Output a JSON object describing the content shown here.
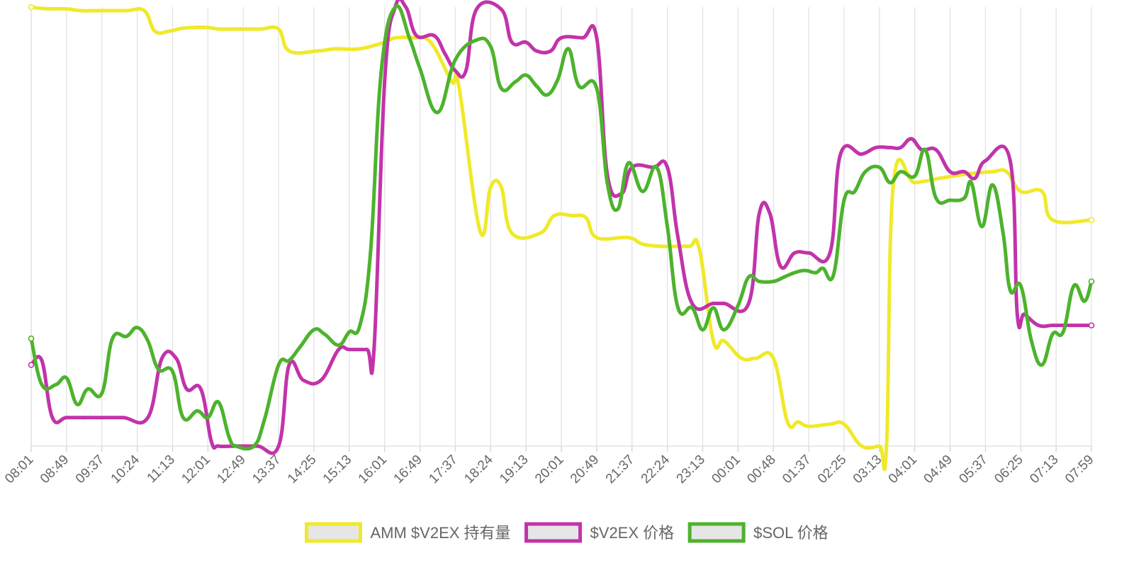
{
  "chart_data": {
    "type": "line",
    "x_ticks": [
      "08:01",
      "08:49",
      "09:37",
      "10:24",
      "11:13",
      "12:01",
      "12:49",
      "13:37",
      "14:25",
      "15:13",
      "16:01",
      "16:49",
      "17:37",
      "18:24",
      "19:13",
      "20:01",
      "20:49",
      "21:37",
      "22:24",
      "23:13",
      "00:01",
      "00:48",
      "01:37",
      "02:25",
      "03:13",
      "04:01",
      "04:49",
      "05:37",
      "06:25",
      "07:13",
      "07:59"
    ],
    "y_range": [
      0,
      100
    ],
    "y_axis_shown": false,
    "grid": "vertical",
    "legend_position": "bottom",
    "series": [
      {
        "name": "AMM $V2EX 持有量",
        "color": "#f0e92a",
        "points": [
          [
            0,
            100
          ],
          [
            0.3,
            99.7
          ],
          [
            0.6,
            99.6
          ],
          [
            1,
            99.6
          ],
          [
            1.4,
            99.2
          ],
          [
            2,
            99.2
          ],
          [
            2.7,
            99.2
          ],
          [
            3.2,
            99.2
          ],
          [
            3.5,
            94.5
          ],
          [
            3.9,
            94.5
          ],
          [
            4.3,
            95.2
          ],
          [
            4.9,
            95.4
          ],
          [
            5.3,
            95.0
          ],
          [
            5.7,
            95.0
          ],
          [
            6.1,
            95.0
          ],
          [
            6.5,
            95.0
          ],
          [
            7.0,
            95.0
          ],
          [
            7.3,
            90.0
          ],
          [
            8.1,
            90.0
          ],
          [
            8.6,
            90.5
          ],
          [
            9.3,
            90.5
          ],
          [
            10.0,
            92.0
          ],
          [
            10.3,
            93.0
          ],
          [
            10.8,
            93.0
          ],
          [
            11.3,
            92.0
          ],
          [
            11.9,
            83.0
          ],
          [
            12.1,
            82.0
          ],
          [
            12.7,
            49.0
          ],
          [
            13.0,
            59.0
          ],
          [
            13.3,
            59.0
          ],
          [
            13.6,
            48.5
          ],
          [
            14.4,
            48.5
          ],
          [
            14.8,
            52.5
          ],
          [
            15.3,
            52.5
          ],
          [
            15.7,
            52.0
          ],
          [
            16.0,
            47.5
          ],
          [
            16.9,
            47.5
          ],
          [
            17.3,
            46.0
          ],
          [
            17.9,
            45.5
          ],
          [
            18.6,
            45.5
          ],
          [
            18.9,
            45.0
          ],
          [
            19.3,
            24.0
          ],
          [
            19.6,
            24.0
          ],
          [
            20.1,
            20.0
          ],
          [
            20.5,
            20.0
          ],
          [
            21.0,
            20.0
          ],
          [
            21.4,
            5.5
          ],
          [
            21.7,
            5.5
          ],
          [
            22.0,
            4.5
          ],
          [
            22.6,
            5.0
          ],
          [
            23.0,
            5.0
          ],
          [
            23.5,
            0
          ],
          [
            24.0,
            0
          ],
          [
            24.2,
            0
          ],
          [
            24.4,
            60.0
          ],
          [
            25.0,
            60.0
          ],
          [
            25.7,
            61.0
          ],
          [
            26.5,
            62.0
          ],
          [
            27.2,
            62.5
          ],
          [
            27.6,
            62.5
          ],
          [
            28.0,
            58.0
          ],
          [
            28.6,
            58.0
          ],
          [
            28.9,
            51.5
          ],
          [
            30.0,
            51.5
          ]
        ]
      },
      {
        "name": "$V2EX 价格",
        "color": "#c233aa",
        "points": [
          [
            0,
            18.5
          ],
          [
            0.3,
            19.5
          ],
          [
            0.6,
            6.5
          ],
          [
            1,
            6.5
          ],
          [
            1.5,
            6.5
          ],
          [
            2,
            6.5
          ],
          [
            2.6,
            6.5
          ],
          [
            3.3,
            6.5
          ],
          [
            3.7,
            20.0
          ],
          [
            4.1,
            20.0
          ],
          [
            4.4,
            13.0
          ],
          [
            4.8,
            13.0
          ],
          [
            5.1,
            1.0
          ],
          [
            5.3,
            0
          ],
          [
            5.8,
            0
          ],
          [
            6.4,
            0
          ],
          [
            7.0,
            0
          ],
          [
            7.3,
            18.5
          ],
          [
            7.7,
            15.0
          ],
          [
            8.2,
            15.0
          ],
          [
            8.7,
            22.0
          ],
          [
            9.0,
            22.0
          ],
          [
            9.5,
            22.0
          ],
          [
            9.7,
            22.0
          ],
          [
            10.0,
            83.0
          ],
          [
            10.3,
            100
          ],
          [
            10.6,
            100
          ],
          [
            10.9,
            93.5
          ],
          [
            11.4,
            93.5
          ],
          [
            11.7,
            89.5
          ],
          [
            12.0,
            85.5
          ],
          [
            12.3,
            85.5
          ],
          [
            12.6,
            99.5
          ],
          [
            13.3,
            99.5
          ],
          [
            13.6,
            92.0
          ],
          [
            14.0,
            92.0
          ],
          [
            14.3,
            90.0
          ],
          [
            14.7,
            90.0
          ],
          [
            15.0,
            93.0
          ],
          [
            15.6,
            93.0
          ],
          [
            16.0,
            93.0
          ],
          [
            16.3,
            62.0
          ],
          [
            16.7,
            57.5
          ],
          [
            17.0,
            63.5
          ],
          [
            17.6,
            63.5
          ],
          [
            18.0,
            63.5
          ],
          [
            18.3,
            47.5
          ],
          [
            18.7,
            32.5
          ],
          [
            19.3,
            32.5
          ],
          [
            19.6,
            32.5
          ],
          [
            20.3,
            32.5
          ],
          [
            20.6,
            53.0
          ],
          [
            20.9,
            53.0
          ],
          [
            21.2,
            41.0
          ],
          [
            21.6,
            44.0
          ],
          [
            22.0,
            44.0
          ],
          [
            22.6,
            44.0
          ],
          [
            22.9,
            66.5
          ],
          [
            23.5,
            66.5
          ],
          [
            23.9,
            68.0
          ],
          [
            24.3,
            68.0
          ],
          [
            24.6,
            68.0
          ],
          [
            24.9,
            70.0
          ],
          [
            25.2,
            67.5
          ],
          [
            25.6,
            67.5
          ],
          [
            26.0,
            62.5
          ],
          [
            26.4,
            62.5
          ],
          [
            26.7,
            61.0
          ],
          [
            27.0,
            65.0
          ],
          [
            27.7,
            65.0
          ],
          [
            27.9,
            30.0
          ],
          [
            28.1,
            30.0
          ],
          [
            28.5,
            27.5
          ],
          [
            28.9,
            27.5
          ],
          [
            29.3,
            27.5
          ],
          [
            30.0,
            27.5
          ]
        ]
      },
      {
        "name": "$SOL 价格",
        "color": "#4db32d",
        "points": [
          [
            0,
            24.5
          ],
          [
            0.3,
            14.0
          ],
          [
            0.7,
            14.0
          ],
          [
            1,
            15.5
          ],
          [
            1.3,
            9.5
          ],
          [
            1.6,
            13.0
          ],
          [
            2,
            12.0
          ],
          [
            2.3,
            24.5
          ],
          [
            2.7,
            25.0
          ],
          [
            3.0,
            27.0
          ],
          [
            3.3,
            24.0
          ],
          [
            3.6,
            17.5
          ],
          [
            4.0,
            17.0
          ],
          [
            4.3,
            6.5
          ],
          [
            4.7,
            8.0
          ],
          [
            5.0,
            6.5
          ],
          [
            5.3,
            10.0
          ],
          [
            5.6,
            2.0
          ],
          [
            5.8,
            0
          ],
          [
            6.3,
            0
          ],
          [
            6.6,
            6.0
          ],
          [
            7.0,
            18.5
          ],
          [
            7.3,
            19.5
          ],
          [
            7.6,
            22.5
          ],
          [
            8.0,
            26.5
          ],
          [
            8.3,
            25.5
          ],
          [
            8.7,
            23.0
          ],
          [
            9.0,
            26.0
          ],
          [
            9.3,
            27.5
          ],
          [
            9.6,
            44.0
          ],
          [
            9.9,
            85.0
          ],
          [
            10.3,
            100
          ],
          [
            10.7,
            93.0
          ],
          [
            11.0,
            86.0
          ],
          [
            11.5,
            76.0
          ],
          [
            12.0,
            88.0
          ],
          [
            12.6,
            92.5
          ],
          [
            13.0,
            91.0
          ],
          [
            13.3,
            81.5
          ],
          [
            13.7,
            83.0
          ],
          [
            14.0,
            84.5
          ],
          [
            14.3,
            82.0
          ],
          [
            14.6,
            80.0
          ],
          [
            14.9,
            83.5
          ],
          [
            15.2,
            90.5
          ],
          [
            15.5,
            82.0
          ],
          [
            16.0,
            81.5
          ],
          [
            16.3,
            60.0
          ],
          [
            16.6,
            54.0
          ],
          [
            16.9,
            64.5
          ],
          [
            17.3,
            58.0
          ],
          [
            17.7,
            63.5
          ],
          [
            18.0,
            50.0
          ],
          [
            18.3,
            31.5
          ],
          [
            18.7,
            31.5
          ],
          [
            19.0,
            26.5
          ],
          [
            19.3,
            31.5
          ],
          [
            19.6,
            26.5
          ],
          [
            20.0,
            32.0
          ],
          [
            20.3,
            38.5
          ],
          [
            20.6,
            37.5
          ],
          [
            21.0,
            37.5
          ],
          [
            21.3,
            38.5
          ],
          [
            21.6,
            39.5
          ],
          [
            21.9,
            40.0
          ],
          [
            22.2,
            39.5
          ],
          [
            22.4,
            40.5
          ],
          [
            22.7,
            39.0
          ],
          [
            23.0,
            56.0
          ],
          [
            23.3,
            58.0
          ],
          [
            23.6,
            62.5
          ],
          [
            24.0,
            63.5
          ],
          [
            24.3,
            60.0
          ],
          [
            24.6,
            62.5
          ],
          [
            25.0,
            61.5
          ],
          [
            25.3,
            67.5
          ],
          [
            25.6,
            56.5
          ],
          [
            26.0,
            56.0
          ],
          [
            26.4,
            56.5
          ],
          [
            26.6,
            60.0
          ],
          [
            26.9,
            50.0
          ],
          [
            27.2,
            59.5
          ],
          [
            27.5,
            48.5
          ],
          [
            27.7,
            35.5
          ],
          [
            28.0,
            36.5
          ],
          [
            28.3,
            24.0
          ],
          [
            28.6,
            18.5
          ],
          [
            28.9,
            25.5
          ],
          [
            29.2,
            26.0
          ],
          [
            29.5,
            36.5
          ],
          [
            29.8,
            33.0
          ],
          [
            30.0,
            37.5
          ]
        ]
      }
    ]
  }
}
